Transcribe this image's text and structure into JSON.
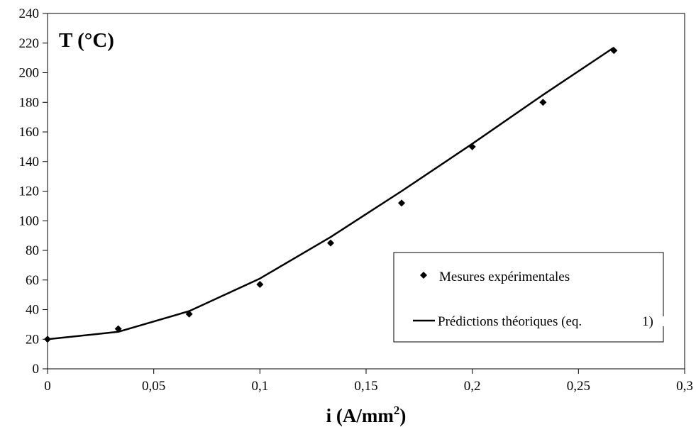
{
  "chart_data": {
    "type": "scatter",
    "xlabel": "i (A/mm",
    "xlabel_sup": "2",
    "xlabel_end": ")",
    "ylabel": "T (°C)",
    "xlim": [
      0,
      0.3
    ],
    "ylim": [
      0,
      240
    ],
    "x_ticks": [
      0,
      0.05,
      0.1,
      0.15,
      0.2,
      0.25,
      0.3
    ],
    "x_tick_labels": [
      "0",
      "0,05",
      "0,1",
      "0,15",
      "0,2",
      "0,25",
      "0,3"
    ],
    "y_ticks": [
      0,
      20,
      40,
      60,
      80,
      100,
      120,
      140,
      160,
      180,
      200,
      220,
      240
    ],
    "y_tick_labels": [
      "0",
      "20",
      "40",
      "60",
      "80",
      "100",
      "120",
      "140",
      "160",
      "180",
      "200",
      "220",
      "240"
    ],
    "grid": false,
    "legend_position": "bottom-right",
    "series": [
      {
        "name": "Mesures expérimentales",
        "kind": "scatter",
        "marker": "diamond",
        "color": "#000000",
        "x": [
          0,
          0.0333,
          0.0667,
          0.1,
          0.1333,
          0.1667,
          0.2,
          0.2333,
          0.2667
        ],
        "y": [
          20,
          27,
          37,
          57,
          85,
          112,
          150,
          180,
          215
        ]
      },
      {
        "name": "Prédictions théoriques (eq.",
        "name_suffix": "1)",
        "kind": "line",
        "color": "#000000",
        "x": [
          0,
          0.0333,
          0.0667,
          0.1,
          0.1333,
          0.1667,
          0.2,
          0.2333,
          0.2667
        ],
        "y": [
          20,
          25,
          39,
          61,
          89,
          120,
          152,
          185,
          217
        ]
      }
    ]
  }
}
